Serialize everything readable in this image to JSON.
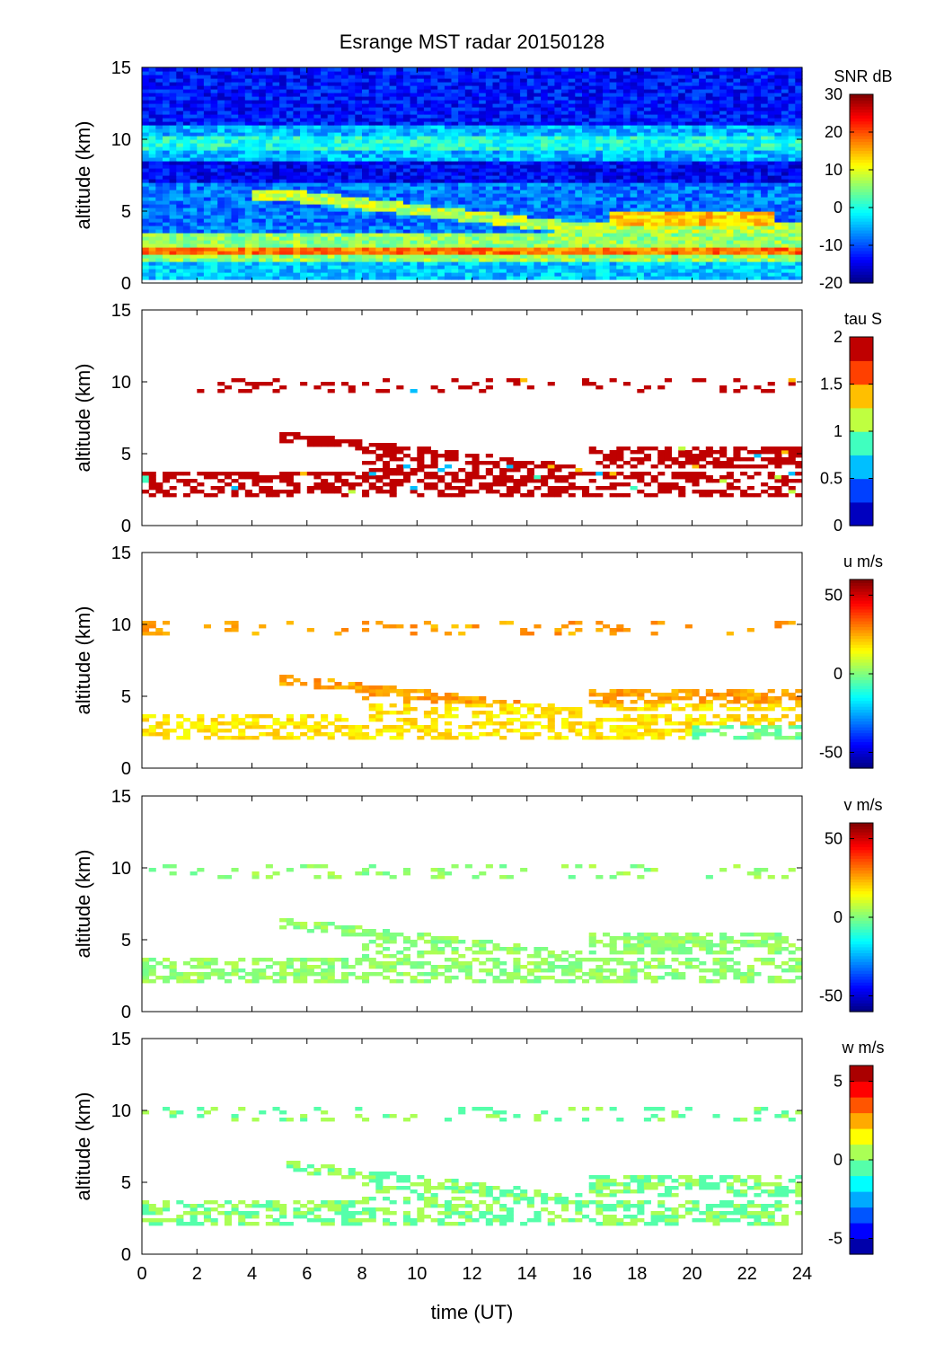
{
  "figure": {
    "title": "Esrange MST radar 20150128",
    "xlabel": "time (UT)"
  },
  "chart_data": [
    {
      "type": "heatmap",
      "quantity": "SNR",
      "colorbar_label": "SNR dB",
      "ylabel": "altitude (km)",
      "xlim": [
        0,
        24
      ],
      "ylim": [
        0,
        15
      ],
      "x_ticks": [
        0,
        2,
        4,
        6,
        8,
        10,
        12,
        14,
        16,
        18,
        20,
        22,
        24
      ],
      "y_ticks": [
        0,
        5,
        10,
        15
      ],
      "clim": [
        -20,
        30
      ],
      "colorbar_ticks": [
        "30",
        "20",
        "10",
        "0",
        "-10",
        "-20"
      ],
      "colorbar_tick_values": [
        30,
        20,
        10,
        0,
        -10,
        -20
      ],
      "colormap": "jet",
      "layers": [
        {
          "t": [
            0,
            24
          ],
          "z": [
            0.2,
            1.4
          ],
          "value": -4
        },
        {
          "t": [
            0,
            24
          ],
          "z": [
            1.4,
            3.4
          ],
          "value": 6
        },
        {
          "t": [
            0,
            24
          ],
          "z": [
            3.4,
            7.0
          ],
          "value": -8
        },
        {
          "t": [
            0,
            24
          ],
          "z": [
            8.5,
            11.0
          ],
          "value": -5
        },
        {
          "t": [
            0,
            24
          ],
          "z": [
            11.0,
            15.0
          ],
          "value": -13
        }
      ]
    },
    {
      "type": "heatmap",
      "quantity": "tau",
      "colorbar_label": "tau S",
      "ylabel": "altitude (km)",
      "xlim": [
        0,
        24
      ],
      "ylim": [
        0,
        15
      ],
      "x_ticks": [
        0,
        2,
        4,
        6,
        8,
        10,
        12,
        14,
        16,
        18,
        20,
        22,
        24
      ],
      "y_ticks": [
        0,
        5,
        10,
        15
      ],
      "clim": [
        0,
        2
      ],
      "colorbar_ticks": [
        "2",
        "1.5",
        "1",
        "0.5",
        "0"
      ],
      "colorbar_tick_values": [
        2,
        1.5,
        1,
        0.5,
        0
      ],
      "colormap": "jet (8 levels)",
      "typical_value": 2
    },
    {
      "type": "heatmap",
      "quantity": "u",
      "colorbar_label": "u m/s",
      "ylabel": "altitude (km)",
      "xlim": [
        0,
        24
      ],
      "ylim": [
        0,
        15
      ],
      "x_ticks": [
        0,
        2,
        4,
        6,
        8,
        10,
        12,
        14,
        16,
        18,
        20,
        22,
        24
      ],
      "y_ticks": [
        0,
        5,
        10,
        15
      ],
      "clim": [
        -60,
        60
      ],
      "colorbar_ticks": [
        "50",
        "0",
        "-50"
      ],
      "colorbar_tick_values": [
        50,
        0,
        -50
      ],
      "colormap": "jet",
      "typical_value": 18
    },
    {
      "type": "heatmap",
      "quantity": "v",
      "colorbar_label": "v m/s",
      "ylabel": "altitude (km)",
      "xlim": [
        0,
        24
      ],
      "ylim": [
        0,
        15
      ],
      "x_ticks": [
        0,
        2,
        4,
        6,
        8,
        10,
        12,
        14,
        16,
        18,
        20,
        22,
        24
      ],
      "y_ticks": [
        0,
        5,
        10,
        15
      ],
      "clim": [
        -60,
        60
      ],
      "colorbar_ticks": [
        "50",
        "0",
        "-50"
      ],
      "colorbar_tick_values": [
        50,
        0,
        -50
      ],
      "colormap": "jet",
      "typical_value": 2
    },
    {
      "type": "heatmap",
      "quantity": "w",
      "colorbar_label": "w m/s",
      "ylabel": "altitude (km)",
      "xlim": [
        0,
        24
      ],
      "ylim": [
        0,
        15
      ],
      "x_ticks": [
        0,
        2,
        4,
        6,
        8,
        10,
        12,
        14,
        16,
        18,
        20,
        22,
        24
      ],
      "y_ticks": [
        0,
        5,
        10,
        15
      ],
      "clim": [
        -6,
        6
      ],
      "colorbar_ticks": [
        "5",
        "0",
        "-5"
      ],
      "colorbar_tick_values": [
        5,
        0,
        -5
      ],
      "colormap": "jet (12 levels)",
      "typical_value": 0
    }
  ],
  "echo_structure": {
    "description_units": "time in UT hours, altitude in km",
    "lower_band": {
      "t": [
        0,
        24
      ],
      "z_bottom": 2.0,
      "z_top": 3.8
    },
    "descending_layer": {
      "t": [
        5,
        16
      ],
      "z_start": 6.2,
      "z_end": 3.8
    },
    "upper_layer": {
      "t": [
        16.3,
        24
      ],
      "z": [
        4.0,
        5.6
      ]
    },
    "tropopause_layer": {
      "t": [
        0,
        24
      ],
      "z": [
        9.2,
        10.2
      ]
    }
  }
}
